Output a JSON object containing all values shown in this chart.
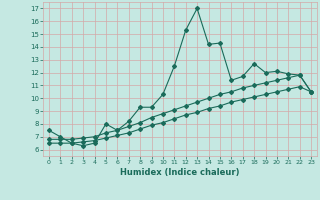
{
  "xlabel": "Humidex (Indice chaleur)",
  "bg_color": "#c5e8e2",
  "grid_color": "#d4a8a8",
  "line_color": "#1a6b5a",
  "xlim": [
    -0.5,
    23.5
  ],
  "ylim": [
    5.5,
    17.5
  ],
  "xticks": [
    0,
    1,
    2,
    3,
    4,
    5,
    6,
    7,
    8,
    9,
    10,
    11,
    12,
    13,
    14,
    15,
    16,
    17,
    18,
    19,
    20,
    21,
    22,
    23
  ],
  "yticks": [
    6,
    7,
    8,
    9,
    10,
    11,
    12,
    13,
    14,
    15,
    16,
    17
  ],
  "curve1_x": [
    0,
    1,
    2,
    3,
    4,
    5,
    6,
    7,
    8,
    9,
    10,
    11,
    12,
    13,
    14,
    15,
    16,
    17,
    18,
    19,
    20,
    21,
    22,
    23
  ],
  "curve1_y": [
    7.5,
    7.0,
    6.5,
    6.3,
    6.5,
    8.0,
    7.5,
    8.2,
    9.3,
    9.3,
    10.3,
    12.5,
    15.3,
    17.0,
    14.2,
    14.3,
    11.4,
    11.7,
    12.7,
    12.0,
    12.1,
    11.9,
    11.8,
    10.5
  ],
  "curve2_x": [
    0,
    1,
    2,
    3,
    4,
    5,
    6,
    7,
    8,
    9,
    10,
    11,
    12,
    13,
    14,
    15,
    16,
    17,
    18,
    19,
    20,
    21,
    22,
    23
  ],
  "curve2_y": [
    6.8,
    6.8,
    6.8,
    6.9,
    7.0,
    7.3,
    7.5,
    7.8,
    8.1,
    8.5,
    8.8,
    9.1,
    9.4,
    9.7,
    10.0,
    10.3,
    10.5,
    10.8,
    11.0,
    11.2,
    11.4,
    11.6,
    11.8,
    10.5
  ],
  "curve3_x": [
    0,
    1,
    2,
    3,
    4,
    5,
    6,
    7,
    8,
    9,
    10,
    11,
    12,
    13,
    14,
    15,
    16,
    17,
    18,
    19,
    20,
    21,
    22,
    23
  ],
  "curve3_y": [
    6.5,
    6.5,
    6.5,
    6.6,
    6.7,
    6.9,
    7.1,
    7.3,
    7.6,
    7.9,
    8.1,
    8.4,
    8.7,
    8.9,
    9.2,
    9.4,
    9.7,
    9.9,
    10.1,
    10.3,
    10.5,
    10.7,
    10.9,
    10.5
  ],
  "marker": "D",
  "markersize": 2.0,
  "linewidth": 0.8
}
